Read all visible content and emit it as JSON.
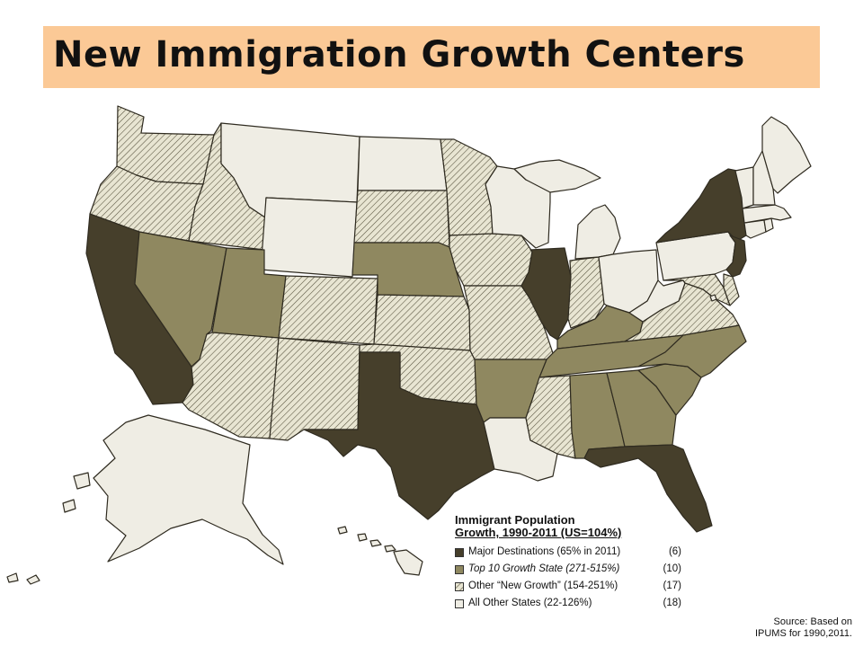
{
  "title": "New Immigration Growth Centers",
  "legend": {
    "title_line1": "Immigrant Population",
    "title_line2": "Growth, 1990-2011 (US=104%)",
    "items": [
      {
        "label": "Major Destinations (65% in 2011)",
        "count": "(6)",
        "color": "#463f2b",
        "style": "solid",
        "italic": false
      },
      {
        "label": "Top 10 Growth State (271-515%)",
        "count": "(10)",
        "color": "#8f8860",
        "style": "solid",
        "italic": true
      },
      {
        "label": "Other “New Growth” (154-251%)",
        "count": "(17)",
        "color": "#e8e5d2",
        "style": "hatched",
        "italic": false
      },
      {
        "label": "All Other States (22-126%)",
        "count": "(18)",
        "color": "#efede4",
        "style": "solid",
        "italic": false
      }
    ]
  },
  "source_line1": "Source: Based on",
  "source_line2": "IPUMS for 1990,2011.",
  "map": {
    "categories": {
      "major": [
        "CA",
        "TX",
        "IL",
        "NY",
        "NJ",
        "FL"
      ],
      "top10_growth": [
        "NV",
        "UT",
        "NE",
        "AR",
        "KY",
        "TN",
        "NC",
        "SC",
        "GA",
        "AL"
      ],
      "other_new_growth": [
        "WA",
        "OR",
        "ID",
        "AZ",
        "CO",
        "NM",
        "SD",
        "KS",
        "OK",
        "MN",
        "IA",
        "MO",
        "IN",
        "MS",
        "VA",
        "DE",
        "MD"
      ],
      "all_other": [
        "MT",
        "WY",
        "ND",
        "WI",
        "MI",
        "OH",
        "PA",
        "WV",
        "LA",
        "ME",
        "NH",
        "VT",
        "MA",
        "RI",
        "CT",
        "AK",
        "HI",
        "DC"
      ]
    }
  }
}
